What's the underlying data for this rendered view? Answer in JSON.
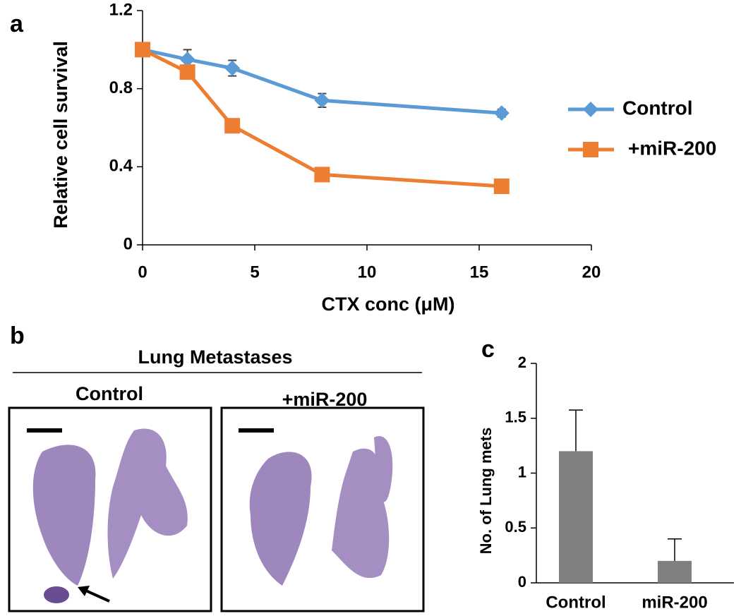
{
  "chart_data": [
    {
      "type": "line",
      "panel_label": "a",
      "x_label": "CTX conc (μM)",
      "y_label": "Relative cell survival",
      "x": [
        0,
        2,
        4,
        8,
        16
      ],
      "series": [
        {
          "name": "Control",
          "color": "#5b9bd5",
          "marker": "diamond",
          "values": [
            1.0,
            0.95,
            0.905,
            0.74,
            0.675
          ],
          "errors": [
            0.02,
            0.05,
            0.04,
            0.035,
            0.02
          ]
        },
        {
          "name": "+miR-200",
          "color": "#ed7d31",
          "marker": "square",
          "values": [
            1.0,
            0.885,
            0.61,
            0.36,
            0.3
          ],
          "errors": [
            0.02,
            0.02,
            0.02,
            0.02,
            0.02
          ]
        }
      ],
      "xlim": [
        0,
        20
      ],
      "xticks": [
        0,
        5,
        10,
        15,
        20
      ],
      "ylim": [
        0,
        1.2
      ],
      "yticks": [
        0,
        0.4,
        0.8,
        1.2
      ],
      "legend": "right"
    },
    {
      "type": "bar",
      "panel_label": "c",
      "y_label": "No. of Lung mets",
      "categories": [
        "Control",
        "miR-200"
      ],
      "values": [
        1.2,
        0.2
      ],
      "errors": [
        0.375,
        0.2
      ],
      "color": "#808080",
      "ylim": [
        0,
        2
      ],
      "yticks": [
        0,
        0.5,
        1,
        1.5,
        2
      ]
    }
  ],
  "figure_b": {
    "panel_label": "b",
    "title": "Lung Metastases",
    "images": [
      {
        "label": "Control"
      },
      {
        "label": "+miR-200"
      }
    ]
  }
}
